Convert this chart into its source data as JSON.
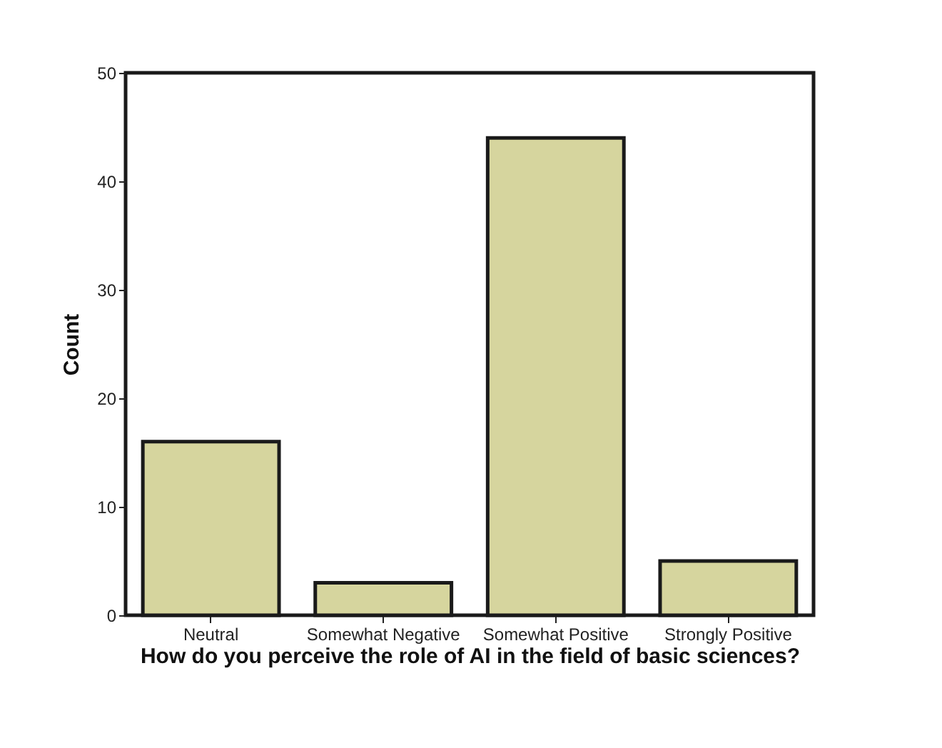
{
  "chart_data": {
    "type": "bar",
    "xlabel": "How do you perceive the role of AI in the field of basic sciences?",
    "ylabel": "Count",
    "categories": [
      "Neutral",
      "Somewhat Negative",
      "Somewhat Positive",
      "Strongly Positive"
    ],
    "values": [
      16,
      3,
      44,
      5
    ],
    "color": "#d6d59e",
    "ylim": [
      0,
      50
    ],
    "yticks": [
      0,
      10,
      20,
      30,
      40,
      50
    ],
    "grid": false
  }
}
